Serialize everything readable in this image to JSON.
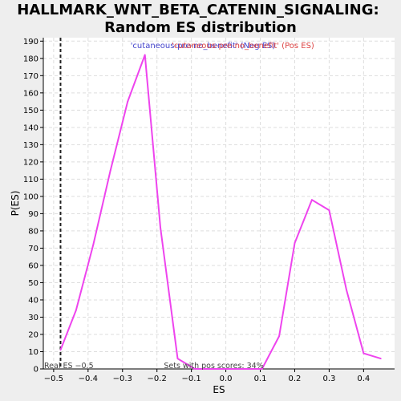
{
  "chart_data": {
    "type": "line",
    "title_line1": "HALLMARK_WNT_BETA_CATENIN_SIGNALING:",
    "title_line2": "Random ES distribution",
    "xlabel": "ES",
    "ylabel": "P(ES)",
    "xlim": [
      -0.53,
      0.49
    ],
    "ylim": [
      0,
      192
    ],
    "xticks": [
      -0.5,
      -0.4,
      -0.3,
      -0.2,
      -0.1,
      0.0,
      0.1,
      0.2,
      0.3,
      0.4
    ],
    "xtick_labels": [
      "−0.5",
      "−0.4",
      "−0.3",
      "−0.2",
      "−0.1",
      "0.0",
      "0.1",
      "0.2",
      "0.3",
      "0.4"
    ],
    "yticks": [
      0,
      10,
      20,
      30,
      40,
      50,
      60,
      70,
      80,
      90,
      100,
      110,
      120,
      130,
      140,
      150,
      160,
      170,
      180,
      190
    ],
    "grid": true,
    "series": [
      {
        "name": "random ES distribution",
        "color": "#ee44ee",
        "x": [
          -0.48,
          -0.435,
          -0.385,
          -0.335,
          -0.285,
          -0.235,
          -0.19,
          -0.14,
          -0.09,
          -0.04,
          0.005,
          0.055,
          0.105,
          0.155,
          0.2,
          0.25,
          0.3,
          0.35,
          0.4,
          0.45
        ],
        "y": [
          11,
          34,
          72,
          115,
          155,
          182,
          82,
          6,
          0,
          0,
          0,
          0,
          0,
          19,
          73,
          98,
          92,
          46,
          9,
          6
        ]
      }
    ],
    "real_es": -0.48,
    "legend": {
      "placement": "top-center",
      "entries": [
        {
          "label": "'cutaneous-pre-no_benefit' (Neg ES)",
          "color": "#4444cc"
        },
        {
          "label": "'cutaneous-pre-no_benefit' (Pos ES)",
          "color": "#dd4444"
        }
      ]
    },
    "annotations": {
      "real_es_label": "Real ES −0.5",
      "pos_scores_label": "Sets with pos scores: 34%"
    }
  }
}
